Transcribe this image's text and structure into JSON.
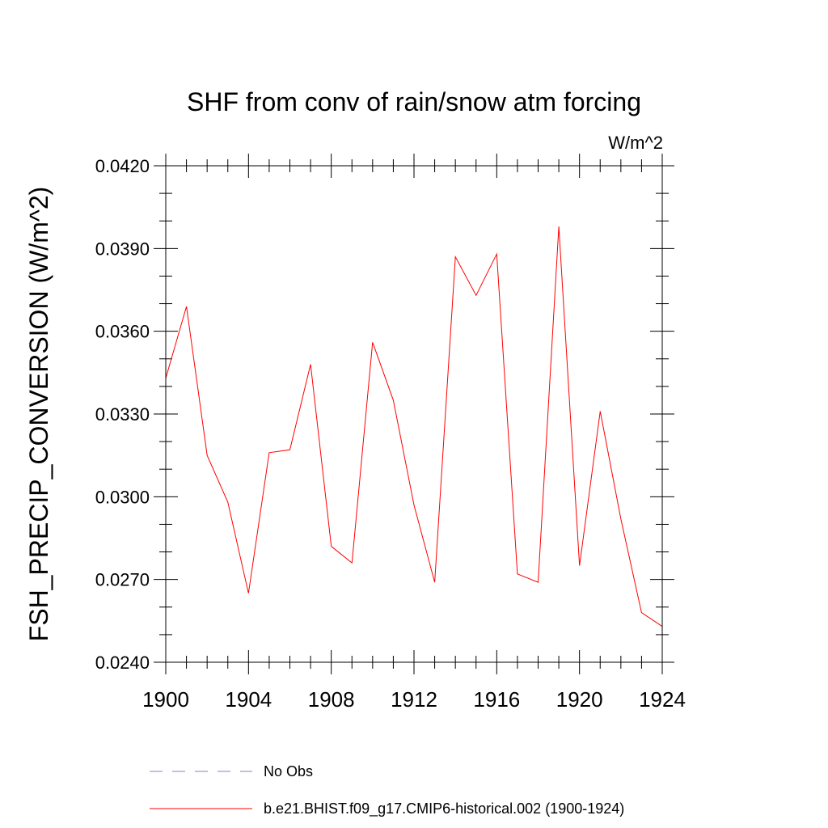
{
  "chart_data": {
    "type": "line",
    "title": "SHF from conv of rain/snow atm forcing",
    "units": "W/m^2",
    "ylabel": "FSH_PRECIP_CONVERSION  (W/m^2)",
    "xlabel": "",
    "xlim": [
      1900,
      1924
    ],
    "ylim": [
      0.024,
      0.042
    ],
    "x_ticks": [
      "1900",
      "1904",
      "1908",
      "1912",
      "1916",
      "1920",
      "1924"
    ],
    "y_ticks": [
      "0.0240",
      "0.0270",
      "0.0300",
      "0.0330",
      "0.0360",
      "0.0390",
      "0.0420"
    ],
    "grid": false,
    "legend_position": "bottom",
    "colors": {
      "model": "#ff0000",
      "obs": "#8080c0"
    },
    "x": [
      1900,
      1901,
      1902,
      1903,
      1904,
      1905,
      1906,
      1907,
      1908,
      1909,
      1910,
      1911,
      1912,
      1913,
      1914,
      1915,
      1916,
      1917,
      1918,
      1919,
      1920,
      1921,
      1922,
      1923,
      1924
    ],
    "series": [
      {
        "name": "b.e21.BHIST.f09_g17.CMIP6-historical.002 (1900-1924)",
        "color": "#ff0000",
        "values": [
          0.0343,
          0.0369,
          0.0315,
          0.0298,
          0.0265,
          0.0316,
          0.0317,
          0.0348,
          0.0282,
          0.0276,
          0.0356,
          0.0335,
          0.0297,
          0.0269,
          0.0387,
          0.0373,
          0.0388,
          0.0272,
          0.0269,
          0.0398,
          0.0275,
          0.0331,
          0.0292,
          0.0258,
          0.0253
        ]
      }
    ],
    "legend": [
      {
        "label": "No Obs",
        "style": "dashed",
        "color": "#8080c0"
      },
      {
        "label": "b.e21.BHIST.f09_g17.CMIP6-historical.002 (1900-1924)",
        "style": "solid",
        "color": "#ff0000"
      }
    ]
  }
}
